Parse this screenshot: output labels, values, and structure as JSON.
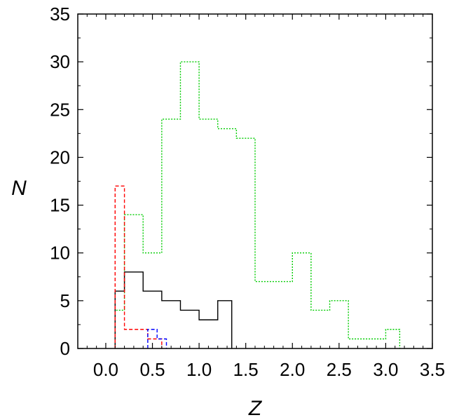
{
  "chart_data": {
    "type": "histogram",
    "title": "",
    "xlabel": "Z",
    "ylabel": "N",
    "xlim": [
      -0.3,
      3.5
    ],
    "ylim": [
      0,
      35
    ],
    "grid": false,
    "legend": "none",
    "x_ticks": [
      0.0,
      0.5,
      1.0,
      1.5,
      2.0,
      2.5,
      3.0,
      3.5
    ],
    "x_tick_labels": [
      "0.0",
      "0.5",
      "1.0",
      "1.5",
      "2.0",
      "2.5",
      "3.0",
      "3.5"
    ],
    "y_ticks": [
      0,
      5,
      10,
      15,
      20,
      25,
      30,
      35
    ],
    "y_tick_labels": [
      "0",
      "5",
      "10",
      "15",
      "20",
      "25",
      "30",
      "35"
    ],
    "series": [
      {
        "color": "#00cc00",
        "line_style": "dotted",
        "bin_edges": [
          0.1,
          0.2,
          0.4,
          0.6,
          0.8,
          1.0,
          1.2,
          1.4,
          1.6,
          1.8,
          2.0,
          2.2,
          2.4,
          2.6,
          2.8,
          3.0,
          3.15
        ],
        "counts": [
          4,
          14,
          10,
          24,
          30,
          24,
          23,
          22,
          7,
          7,
          10,
          4,
          5,
          1,
          1,
          2
        ]
      },
      {
        "color": "#000000",
        "line_style": "solid",
        "bin_edges": [
          0.1,
          0.2,
          0.4,
          0.6,
          0.8,
          1.0,
          1.2,
          1.35
        ],
        "counts": [
          6,
          8,
          6,
          5,
          4,
          3,
          5
        ]
      },
      {
        "color": "#ff0000",
        "line_style": "dashed",
        "bin_edges": [
          0.1,
          0.2,
          0.45,
          0.6
        ],
        "counts": [
          17,
          2,
          1
        ]
      },
      {
        "color": "#0000ff",
        "line_style": "dashed",
        "bin_edges": [
          0.45,
          0.55,
          0.65
        ],
        "counts": [
          2,
          1
        ]
      }
    ]
  }
}
